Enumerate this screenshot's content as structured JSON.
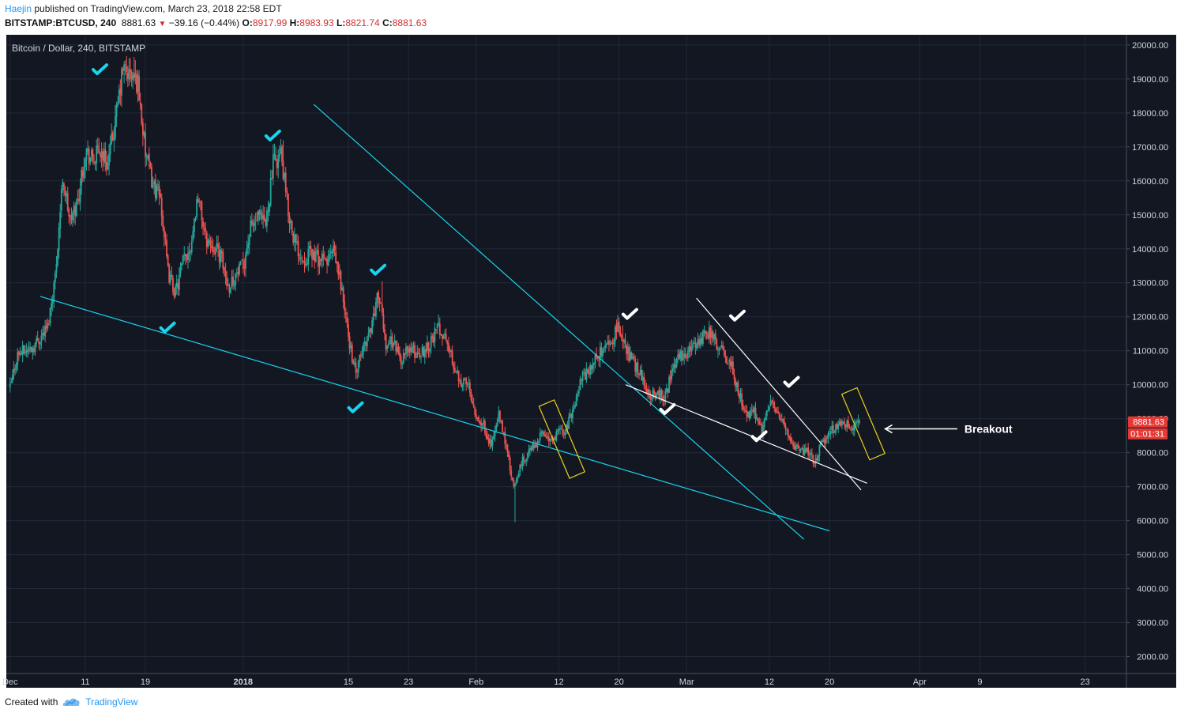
{
  "header": {
    "author": "Haejin",
    "published_text": "published on TradingView.com, March 23, 2018 22:58 EDT",
    "symbol": "BITSTAMP:BTCUSD, 240",
    "last": "8881.63",
    "change": "−39.16 (−0.44%)",
    "open_label": "O:",
    "open": "8917.99",
    "high_label": "H:",
    "high": "8983.93",
    "low_label": "L:",
    "low": "8821.74",
    "close_label": "C:",
    "close": "8881.63"
  },
  "footer": {
    "created_with": "Created with",
    "brand": "TradingView"
  },
  "colors": {
    "background": "#131722",
    "grid": "#232838",
    "up": "#26a69a",
    "down": "#ef5350",
    "cyan": "#18d4ec",
    "white": "#ffffff",
    "yellow": "#e8d21d",
    "price_tag": "#e53935"
  },
  "chart_data": {
    "type": "candlestick",
    "title": "Bitcoin / Dollar, 240, BITSTAMP",
    "ylim": [
      1500,
      20300
    ],
    "y_ticks": [
      "20000.00",
      "19000.00",
      "18000.00",
      "17000.00",
      "16000.00",
      "15000.00",
      "14000.00",
      "13000.00",
      "12000.00",
      "11000.00",
      "10000.00",
      "9000.00",
      "8000.00",
      "7000.00",
      "6000.00",
      "5000.00",
      "4000.00",
      "3000.00",
      "2000.00"
    ],
    "x_ticks": [
      {
        "label": "Dec",
        "day": 0
      },
      {
        "label": "11",
        "day": 10
      },
      {
        "label": "19",
        "day": 18
      },
      {
        "label": "2018",
        "day": 31
      },
      {
        "label": "15",
        "day": 45
      },
      {
        "label": "23",
        "day": 53
      },
      {
        "label": "Feb",
        "day": 62
      },
      {
        "label": "12",
        "day": 73
      },
      {
        "label": "20",
        "day": 81
      },
      {
        "label": "Mar",
        "day": 90
      },
      {
        "label": "12",
        "day": 101
      },
      {
        "label": "20",
        "day": 109
      },
      {
        "label": "Apr",
        "day": 121
      },
      {
        "label": "9",
        "day": 129
      },
      {
        "label": "23",
        "day": 143
      }
    ],
    "x_range_days": [
      -0.5,
      148.5
    ],
    "price_path": [
      [
        0,
        9900
      ],
      [
        1,
        10900
      ],
      [
        3,
        11100
      ],
      [
        5,
        11700
      ],
      [
        6,
        13200
      ],
      [
        7,
        16100
      ],
      [
        8,
        14800
      ],
      [
        9,
        15400
      ],
      [
        10,
        16900
      ],
      [
        11,
        16600
      ],
      [
        12,
        16900
      ],
      [
        13,
        16500
      ],
      [
        14,
        17700
      ],
      [
        15,
        19300
      ],
      [
        16,
        19100
      ],
      [
        17,
        18900
      ],
      [
        18,
        16800
      ],
      [
        19,
        15900
      ],
      [
        20,
        15500
      ],
      [
        21,
        13300
      ],
      [
        22,
        12700
      ],
      [
        23,
        13600
      ],
      [
        24,
        14100
      ],
      [
        25,
        15600
      ],
      [
        26,
        14300
      ],
      [
        27,
        14100
      ],
      [
        28,
        13800
      ],
      [
        29,
        12900
      ],
      [
        30,
        13200
      ],
      [
        31,
        13500
      ],
      [
        32,
        14600
      ],
      [
        33,
        14900
      ],
      [
        34,
        14700
      ],
      [
        35,
        16500
      ],
      [
        36,
        16800
      ],
      [
        37,
        15100
      ],
      [
        38,
        14100
      ],
      [
        39,
        13700
      ],
      [
        40,
        13900
      ],
      [
        41,
        13700
      ],
      [
        42,
        13600
      ],
      [
        43,
        13900
      ],
      [
        44,
        13000
      ],
      [
        45,
        11400
      ],
      [
        46,
        10300
      ],
      [
        47,
        11100
      ],
      [
        48,
        11700
      ],
      [
        49,
        12700
      ],
      [
        50,
        11200
      ],
      [
        51,
        11300
      ],
      [
        52,
        10700
      ],
      [
        53,
        11100
      ],
      [
        54,
        10900
      ],
      [
        55,
        11000
      ],
      [
        56,
        11300
      ],
      [
        57,
        11700
      ],
      [
        58,
        11300
      ],
      [
        59,
        10600
      ],
      [
        60,
        10100
      ],
      [
        61,
        10000
      ],
      [
        62,
        9100
      ],
      [
        63,
        8800
      ],
      [
        64,
        8200
      ],
      [
        65,
        9100
      ],
      [
        66,
        8200
      ],
      [
        67,
        6900
      ],
      [
        68,
        7700
      ],
      [
        69,
        8000
      ],
      [
        70,
        8300
      ],
      [
        71,
        8600
      ],
      [
        72,
        8300
      ],
      [
        73,
        8600
      ],
      [
        74,
        8700
      ],
      [
        75,
        9400
      ],
      [
        76,
        10200
      ],
      [
        77,
        10400
      ],
      [
        78,
        10800
      ],
      [
        79,
        11100
      ],
      [
        80,
        11300
      ],
      [
        81,
        11700
      ],
      [
        82,
        11000
      ],
      [
        83,
        10600
      ],
      [
        84,
        10300
      ],
      [
        85,
        9700
      ],
      [
        86,
        9800
      ],
      [
        87,
        9600
      ],
      [
        88,
        10300
      ],
      [
        89,
        10800
      ],
      [
        90,
        10900
      ],
      [
        91,
        11200
      ],
      [
        92,
        11400
      ],
      [
        93,
        11600
      ],
      [
        94,
        11200
      ],
      [
        95,
        10900
      ],
      [
        96,
        10500
      ],
      [
        97,
        9700
      ],
      [
        98,
        9100
      ],
      [
        99,
        9200
      ],
      [
        100,
        8700
      ],
      [
        101,
        9500
      ],
      [
        102,
        9200
      ],
      [
        103,
        8800
      ],
      [
        104,
        8300
      ],
      [
        105,
        8000
      ],
      [
        106,
        8100
      ],
      [
        107,
        7700
      ],
      [
        108,
        8300
      ],
      [
        109,
        8600
      ],
      [
        110,
        8800
      ],
      [
        111,
        8900
      ],
      [
        112,
        8600
      ],
      [
        113,
        8881
      ]
    ],
    "price_extremes": [
      [
        16.5,
        19650,
        "high"
      ],
      [
        67.2,
        5950,
        "low"
      ],
      [
        36.3,
        17200,
        "high"
      ],
      [
        49.5,
        13050,
        "high"
      ],
      [
        81.5,
        11750,
        "high"
      ]
    ],
    "candles_per_day": 6,
    "trendlines": [
      {
        "color": "cyan",
        "points": [
          [
            4.0,
            12600
          ],
          [
            109.0,
            5700
          ]
        ]
      },
      {
        "color": "cyan",
        "points": [
          [
            40.4,
            18250
          ],
          [
            105.6,
            5450
          ]
        ]
      },
      {
        "color": "white",
        "points": [
          [
            91.3,
            12550
          ],
          [
            113.2,
            6900
          ]
        ]
      },
      {
        "color": "white",
        "points": [
          [
            81.9,
            10000
          ],
          [
            114.0,
            7100
          ]
        ]
      }
    ],
    "rectangles": [
      {
        "color": "yellow",
        "center": [
          73.4,
          8400
        ],
        "width_days": 2.2,
        "height_price": 2300,
        "angle_deg": -23
      },
      {
        "color": "yellow",
        "center": [
          113.5,
          8850
        ],
        "width_days": 2.2,
        "height_price": 2100,
        "angle_deg": -23
      }
    ],
    "checkmarks": [
      {
        "color": "cyan",
        "day": 12.0,
        "price": 19250
      },
      {
        "color": "cyan",
        "day": 35.0,
        "price": 17300
      },
      {
        "color": "cyan",
        "day": 21.0,
        "price": 11650
      },
      {
        "color": "cyan",
        "day": 49.0,
        "price": 13350
      },
      {
        "color": "cyan",
        "day": 46.0,
        "price": 9300
      },
      {
        "color": "white",
        "day": 82.5,
        "price": 12050
      },
      {
        "color": "white",
        "day": 96.8,
        "price": 12000
      },
      {
        "color": "white",
        "day": 104.0,
        "price": 10050
      },
      {
        "color": "white",
        "day": 87.5,
        "price": 9250
      },
      {
        "color": "white",
        "day": 99.7,
        "price": 8450
      }
    ],
    "annotation": {
      "text": "Breakout",
      "arrow_from_day": 126.0,
      "arrow_to_day": 116.4,
      "price": 8700
    },
    "last_price": {
      "value": "8881.63",
      "countdown": "01:01:31"
    }
  }
}
